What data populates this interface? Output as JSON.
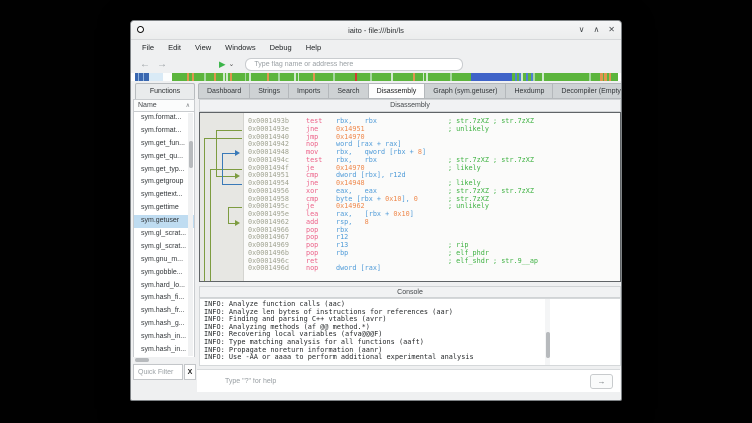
{
  "colors": {
    "addr": "#a0a391",
    "mn": "#ec5f87",
    "reg": "#4f9bd8",
    "num": "#ef8a4e",
    "comment": "#3cb140",
    "arrow_olive": "#7d9c40",
    "arrow_blue": "#3a7ab8",
    "accent_selection": "#bfdcf1",
    "play_green": "#3bb54a"
  },
  "window": {
    "title": "iaito - file:///bin/ls",
    "controls": [
      {
        "name": "minimize",
        "glyph": "∨"
      },
      {
        "name": "maximize",
        "glyph": "∧"
      },
      {
        "name": "close",
        "glyph": "✕"
      }
    ]
  },
  "menu": {
    "items": [
      "File",
      "Edit",
      "View",
      "Windows",
      "Debug",
      "Help"
    ]
  },
  "toolbar": {
    "back_icon": "←",
    "forward_icon": "→",
    "play_icon": "▶",
    "play_menu_icon": "⌄",
    "search_placeholder": "Type flag name or address here"
  },
  "memory_bar": {
    "segments": [
      {
        "w": 0.6,
        "c": "#ffffff"
      },
      {
        "w": 0.5,
        "c": "#3a67b0"
      },
      {
        "w": 0.2,
        "c": "#8fb3e0"
      },
      {
        "w": 0.6,
        "c": "#3a67b0"
      },
      {
        "w": 0.2,
        "c": "#8fb3e0"
      },
      {
        "w": 0.7,
        "c": "#3a67b0"
      },
      {
        "w": 2.3,
        "c": "#d9eaf6"
      },
      {
        "w": 1.3,
        "c": "#fcfdfd"
      },
      {
        "w": 2.4,
        "c": "#5cb53d"
      },
      {
        "w": 0.3,
        "c": "#e0954f"
      },
      {
        "w": 0.5,
        "c": "#5cb53d"
      },
      {
        "w": 0.3,
        "c": "#e0954f"
      },
      {
        "w": 1.6,
        "c": "#5cb53d"
      },
      {
        "w": 0.3,
        "c": "#a6d79f"
      },
      {
        "w": 1.2,
        "c": "#5cb53d"
      },
      {
        "w": 0.3,
        "c": "#e0954f"
      },
      {
        "w": 1.2,
        "c": "#5cb53d"
      },
      {
        "w": 0.25,
        "c": "#cfe9cc"
      },
      {
        "w": 0.25,
        "c": "#5cb53d"
      },
      {
        "w": 0.25,
        "c": "#cfe9cc"
      },
      {
        "w": 0.3,
        "c": "#5cb53d"
      },
      {
        "w": 0.3,
        "c": "#e0954f"
      },
      {
        "w": 2.0,
        "c": "#5cb53d"
      },
      {
        "w": 0.3,
        "c": "#a6d79f"
      },
      {
        "w": 0.4,
        "c": "#5cb53d"
      },
      {
        "w": 0.3,
        "c": "#cfe9cc"
      },
      {
        "w": 2.5,
        "c": "#5cb53d"
      },
      {
        "w": 0.3,
        "c": "#e0954f"
      },
      {
        "w": 1.5,
        "c": "#5cb53d"
      },
      {
        "w": 0.3,
        "c": "#a6d79f"
      },
      {
        "w": 2.2,
        "c": "#5cb53d"
      },
      {
        "w": 0.25,
        "c": "#cfe9cc"
      },
      {
        "w": 0.3,
        "c": "#5cb53d"
      },
      {
        "w": 0.25,
        "c": "#cfe9cc"
      },
      {
        "w": 2.2,
        "c": "#5cb53d"
      },
      {
        "w": 0.3,
        "c": "#e0954f"
      },
      {
        "w": 2.8,
        "c": "#5cb53d"
      },
      {
        "w": 0.3,
        "c": "#a6d79f"
      },
      {
        "w": 3.2,
        "c": "#5cb53d"
      },
      {
        "w": 0.25,
        "c": "#cf3b31"
      },
      {
        "w": 2.0,
        "c": "#5cb53d"
      },
      {
        "w": 0.3,
        "c": "#a6d79f"
      },
      {
        "w": 3.0,
        "c": "#5cb53d"
      },
      {
        "w": 0.3,
        "c": "#cfe9cc"
      },
      {
        "w": 3.2,
        "c": "#5cb53d"
      },
      {
        "w": 0.35,
        "c": "#e0954f"
      },
      {
        "w": 1.2,
        "c": "#5cb53d"
      },
      {
        "w": 0.25,
        "c": "#cfe9cc"
      },
      {
        "w": 0.3,
        "c": "#5cb53d"
      },
      {
        "w": 0.25,
        "c": "#cfe9cc"
      },
      {
        "w": 3.5,
        "c": "#5cb53d"
      },
      {
        "w": 0.3,
        "c": "#a6d79f"
      },
      {
        "w": 3.0,
        "c": "#5cb53d"
      },
      {
        "w": 6.5,
        "c": "#3f63c8"
      },
      {
        "w": 0.4,
        "c": "#5cb53d"
      },
      {
        "w": 0.3,
        "c": "#4f80d2"
      },
      {
        "w": 0.4,
        "c": "#5cb53d"
      },
      {
        "w": 0.3,
        "c": "#4f80d2"
      },
      {
        "w": 0.3,
        "c": "#cfe9cc"
      },
      {
        "w": 0.4,
        "c": "#5cb53d"
      },
      {
        "w": 0.3,
        "c": "#4f80d2"
      },
      {
        "w": 0.5,
        "c": "#5cb53d"
      },
      {
        "w": 0.3,
        "c": "#4f80d2"
      },
      {
        "w": 0.3,
        "c": "#a6d79f"
      },
      {
        "w": 1.2,
        "c": "#5cb53d"
      },
      {
        "w": 0.3,
        "c": "#cfe9cc"
      },
      {
        "w": 7.0,
        "c": "#5cb53d"
      },
      {
        "w": 0.3,
        "c": "#a6d79f"
      },
      {
        "w": 1.5,
        "c": "#5cb53d"
      },
      {
        "w": 0.35,
        "c": "#e0954f"
      },
      {
        "w": 0.3,
        "c": "#5cb53d"
      },
      {
        "w": 0.35,
        "c": "#e0954f"
      },
      {
        "w": 0.4,
        "c": "#5cb53d"
      },
      {
        "w": 0.35,
        "c": "#e0954f"
      },
      {
        "w": 1.0,
        "c": "#5cb53d"
      },
      {
        "w": 0.5,
        "c": "#fefefe"
      }
    ]
  },
  "functions_panel": {
    "title": "Functions",
    "column": "Name",
    "sort_icon": "∧",
    "items": [
      "sym.format...",
      "sym.format...",
      "sym.get_fun...",
      "sym.get_qu...",
      "sym.get_typ...",
      "sym.getgroup",
      "sym.gettext...",
      "sym.gettime",
      "sym.getuser",
      "sym.gl_scrat...",
      "sym.gl_scrat...",
      "sym.gnu_m...",
      "sym.gobble...",
      "sym.hard_lo...",
      "sym.hash_fi...",
      "sym.hash_fr...",
      "sym.hash_g...",
      "sym.hash_in...",
      "sym.hash_in..."
    ],
    "selected_index": 8,
    "filter_placeholder": "Quick Filter",
    "clear_label": "X"
  },
  "tabs": {
    "items": [
      "Dashboard",
      "Strings",
      "Imports",
      "Search",
      "Disassembly",
      "Graph (sym.getuser)",
      "Hexdump",
      "Decompiler (Empty)"
    ],
    "active_index": 4
  },
  "disassembly": {
    "title": "Disassembly",
    "lines": [
      {
        "addr": "0x0001493b",
        "mn": "test",
        "ops": [
          [
            "rbx,   ",
            "reg"
          ],
          [
            "rbx",
            "reg"
          ]
        ],
        "comment": "; str.7zXZ ; str.7zXZ"
      },
      {
        "addr": "0x0001493e",
        "mn": "jne",
        "ops": [
          [
            "0x14951",
            "num"
          ]
        ],
        "comment": "; unlikely"
      },
      {
        "addr": "0x00014940",
        "mn": "jmp",
        "ops": [
          [
            "0x14970",
            "num"
          ]
        ],
        "comment": ""
      },
      {
        "addr": "0x00014942",
        "mn": "nop",
        "ops": [
          [
            "word [rax + rax]",
            "reg"
          ]
        ],
        "comment": ""
      },
      {
        "addr": "0x00014948",
        "mn": "mov",
        "ops": [
          [
            "rbx,   ",
            "reg"
          ],
          [
            "qword [rbx + ",
            "reg"
          ],
          [
            "8",
            "num"
          ],
          [
            "]",
            "reg"
          ]
        ],
        "comment": ""
      },
      {
        "addr": "0x0001494c",
        "mn": "test",
        "ops": [
          [
            "rbx,   ",
            "reg"
          ],
          [
            "rbx",
            "reg"
          ]
        ],
        "comment": "; str.7zXZ ; str.7zXZ"
      },
      {
        "addr": "0x0001494f",
        "mn": "je",
        "ops": [
          [
            "0x14970",
            "num"
          ]
        ],
        "comment": "; likely"
      },
      {
        "addr": "0x00014951",
        "mn": "cmp",
        "ops": [
          [
            "dword [rbx], ",
            "reg"
          ],
          [
            "r12d",
            "reg"
          ]
        ],
        "comment": ""
      },
      {
        "addr": "0x00014954",
        "mn": "jne",
        "ops": [
          [
            "0x14948",
            "num"
          ]
        ],
        "comment": "; likely"
      },
      {
        "addr": "0x00014956",
        "mn": "xor",
        "ops": [
          [
            "eax,   ",
            "reg"
          ],
          [
            "eax",
            "reg"
          ]
        ],
        "comment": "; str.7zXZ ; str.7zXZ"
      },
      {
        "addr": "0x00014958",
        "mn": "cmp",
        "ops": [
          [
            "byte [rbx + ",
            "reg"
          ],
          [
            "0x10",
            "num"
          ],
          [
            "], ",
            "reg"
          ],
          [
            "0",
            "num"
          ]
        ],
        "comment": "; str.7zXZ"
      },
      {
        "addr": "0x0001495c",
        "mn": "je",
        "ops": [
          [
            "0x14962",
            "num"
          ]
        ],
        "comment": "; unlikely"
      },
      {
        "addr": "0x0001495e",
        "mn": "lea",
        "ops": [
          [
            "rax,   ",
            "reg"
          ],
          [
            "[rbx + ",
            "reg"
          ],
          [
            "0x10",
            "num"
          ],
          [
            "]",
            "reg"
          ]
        ],
        "comment": ""
      },
      {
        "addr": "0x00014962",
        "mn": "add",
        "ops": [
          [
            "rsp,   ",
            "reg"
          ],
          [
            "8",
            "num"
          ]
        ],
        "comment": ""
      },
      {
        "addr": "0x00014966",
        "mn": "pop",
        "ops": [
          [
            "rbx",
            "reg"
          ]
        ],
        "comment": ""
      },
      {
        "addr": "0x00014967",
        "mn": "pop",
        "ops": [
          [
            "r12",
            "reg"
          ]
        ],
        "comment": ""
      },
      {
        "addr": "0x00014969",
        "mn": "pop",
        "ops": [
          [
            "r13",
            "reg"
          ]
        ],
        "comment": "; rip"
      },
      {
        "addr": "0x0001496b",
        "mn": "pop",
        "ops": [
          [
            "rbp",
            "reg"
          ]
        ],
        "comment": "; elf_phdr"
      },
      {
        "addr": "0x0001496c",
        "mn": "ret",
        "ops": [],
        "comment": "; elf_shdr ; str.9__ap"
      },
      {
        "addr": "0x0001496d",
        "mn": "nop",
        "ops": [
          [
            "dword [rax]",
            "reg"
          ]
        ],
        "comment": ""
      }
    ],
    "arrows": [
      {
        "from": 2,
        "to_bottom": true,
        "x": 4,
        "color": "#7d9c40"
      },
      {
        "from": 6,
        "to_bottom": true,
        "x": 10,
        "color": "#7d9c40"
      },
      {
        "from": 1,
        "to": 7,
        "x": 16,
        "color": "#7d9c40"
      },
      {
        "from": 8,
        "to": 4,
        "x": 22,
        "color": "#3a7ab8"
      },
      {
        "from": 11,
        "to": 13,
        "x": 28,
        "color": "#7d9c40"
      }
    ]
  },
  "console": {
    "title": "Console",
    "lines": [
      "INFO: Analyze function calls (aac)",
      "INFO: Analyze len bytes of instructions for references (aar)",
      "INFO: Finding and parsing C++ vtables (avrr)",
      "INFO: Analyzing methods (af @@ method.*)",
      "INFO: Recovering local variables (afva@@@F)",
      "INFO: Type matching analysis for all functions (aaft)",
      "INFO: Propagate noreturn information (aanr)",
      "INFO: Use -AA or aaaa to perform additional experimental analysis"
    ]
  },
  "command_bar": {
    "placeholder": "Type \"?\" for help",
    "go_icon": "→"
  }
}
